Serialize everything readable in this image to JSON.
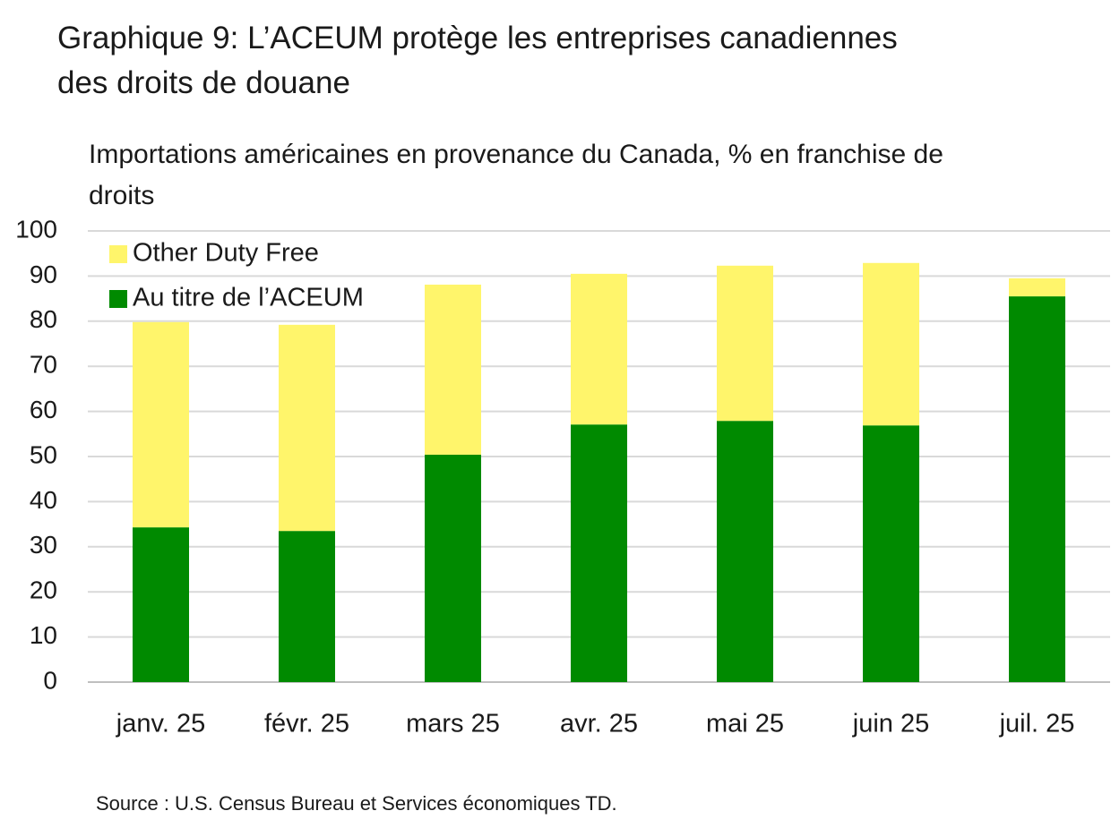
{
  "chart_data": {
    "type": "stacked_bar",
    "title": "Graphique 9: L’ACEUM protège les entreprises canadiennes des droits de douane",
    "subtitle": "Importations américaines en provenance du Canada, % en franchise de droits",
    "source": "Source : U.S. Census Bureau et Services économiques TD.",
    "categories": [
      "janv. 25",
      "févr. 25",
      "mars 25",
      "avr. 25",
      "mai 25",
      "juin 25",
      "juil. 25"
    ],
    "series": [
      {
        "name": "Au titre de l’ACEUM",
        "color": "#008a00",
        "values": [
          34.3,
          33.5,
          50.4,
          57.1,
          57.9,
          56.9,
          85.5
        ]
      },
      {
        "name": "Other Duty Free",
        "color": "#fff56b",
        "values": [
          45.5,
          45.7,
          37.7,
          33.4,
          34.4,
          36.0,
          4.0
        ]
      }
    ],
    "ylim": [
      0,
      100
    ],
    "yticks": [
      0,
      10,
      20,
      30,
      40,
      50,
      60,
      70,
      80,
      90,
      100
    ],
    "grid": true
  }
}
